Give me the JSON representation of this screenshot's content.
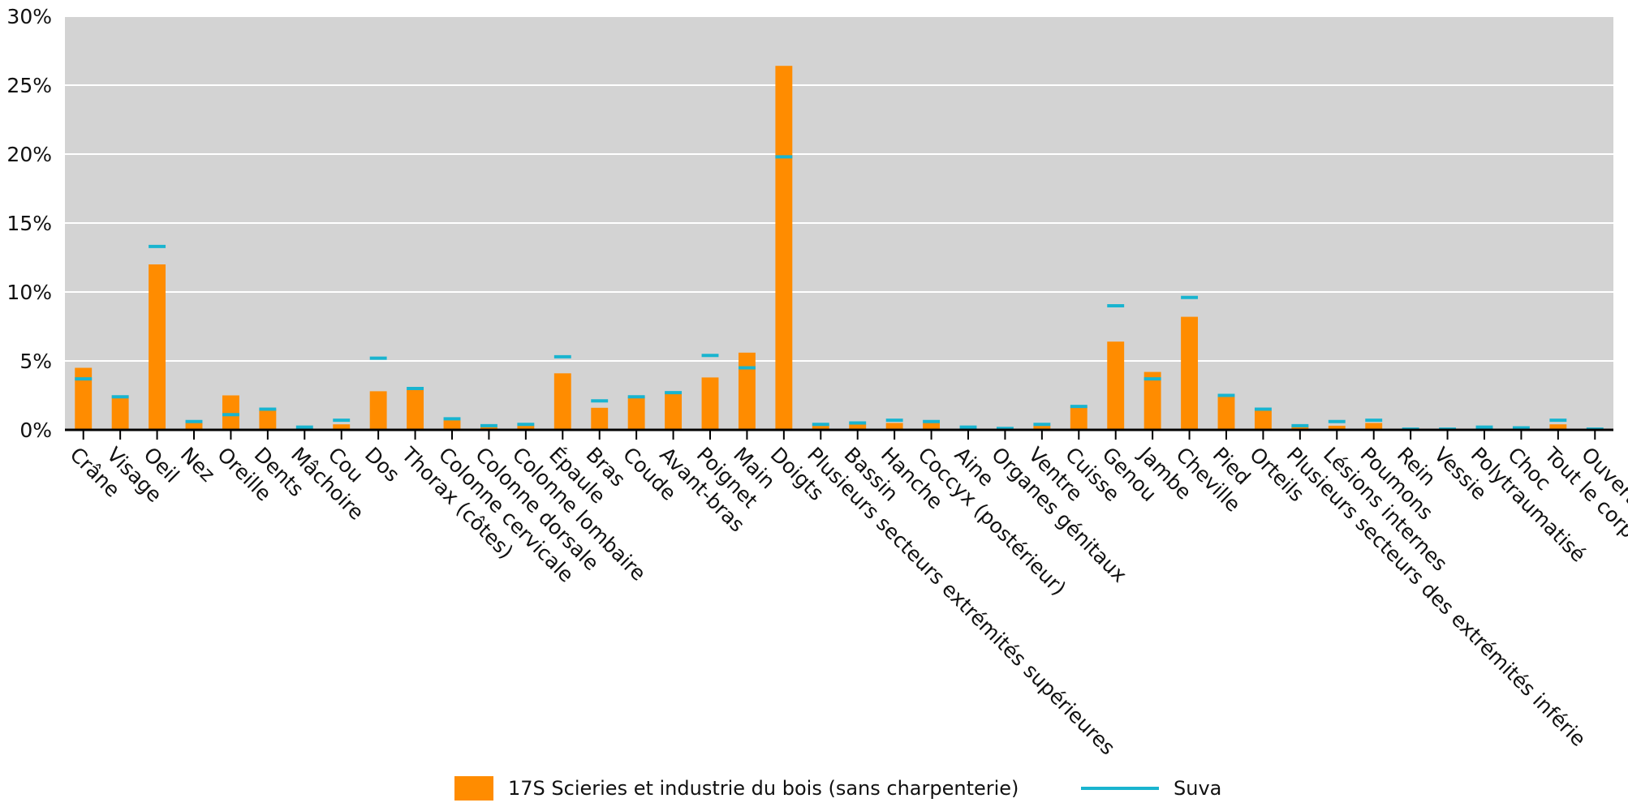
{
  "chart_data": {
    "type": "bar",
    "title": "",
    "xlabel": "",
    "ylabel": "",
    "ylim": [
      0,
      30
    ],
    "y_ticks": [
      "0%",
      "5%",
      "10%",
      "15%",
      "20%",
      "25%",
      "30%"
    ],
    "y_tick_values": [
      0,
      5,
      10,
      15,
      20,
      25,
      30
    ],
    "grid": "horizontal",
    "legend_position": "bottom",
    "categories": [
      "Crâne",
      "Visage",
      "Oeil",
      "Nez",
      "Oreille",
      "Dents",
      "Mâchoire",
      "Cou",
      "Dos",
      "Thorax (côtes)",
      "Colonne cervicale",
      "Colonne dorsale",
      "Colonne lombaire",
      "Épaule",
      "Bras",
      "Coude",
      "Avant-bras",
      "Poignet",
      "Main",
      "Doigts",
      "Plusieurs secteurs extrémités supérieures",
      "Bassin",
      "Hanche",
      "Coccyx (postérieur)",
      "Aine",
      "Organes génitaux",
      "Ventre",
      "Cuisse",
      "Genou",
      "Jambe",
      "Cheville",
      "Pied",
      "Orteils",
      "Plusieurs secteurs des extrémités inférie",
      "Lésions internes",
      "Poumons",
      "Rein",
      "Vessie",
      "Polytraumatisé",
      "Choc",
      "Tout le corps",
      "Ouvert"
    ],
    "series": [
      {
        "name": "17S Scieries et industrie du bois (sans charpenterie)",
        "type": "bar",
        "color": "#ff8c00",
        "values": [
          4.5,
          2.5,
          12.0,
          0.5,
          2.5,
          1.5,
          0.1,
          0.4,
          2.8,
          2.9,
          0.7,
          0.2,
          0.3,
          4.1,
          1.6,
          2.4,
          2.7,
          3.8,
          5.6,
          26.4,
          0.4,
          0.4,
          0.5,
          0.5,
          0.1,
          0.05,
          0.3,
          1.7,
          6.4,
          4.2,
          8.2,
          2.4,
          1.4,
          0.3,
          0.3,
          0.5,
          0.05,
          0.05,
          0.15,
          0.1,
          0.4,
          0.05
        ]
      },
      {
        "name": "Suva",
        "type": "line-marker",
        "color": "#19b4cf",
        "values": [
          3.7,
          2.4,
          13.3,
          0.6,
          1.1,
          1.5,
          0.2,
          0.7,
          5.2,
          3.0,
          0.8,
          0.3,
          0.4,
          5.3,
          2.1,
          2.4,
          2.7,
          5.4,
          4.5,
          19.8,
          0.4,
          0.5,
          0.7,
          0.6,
          0.2,
          0.1,
          0.4,
          1.7,
          9.0,
          3.7,
          9.6,
          2.5,
          1.5,
          0.3,
          0.6,
          0.7,
          0.05,
          0.05,
          0.2,
          0.15,
          0.7,
          0.05
        ]
      }
    ]
  }
}
